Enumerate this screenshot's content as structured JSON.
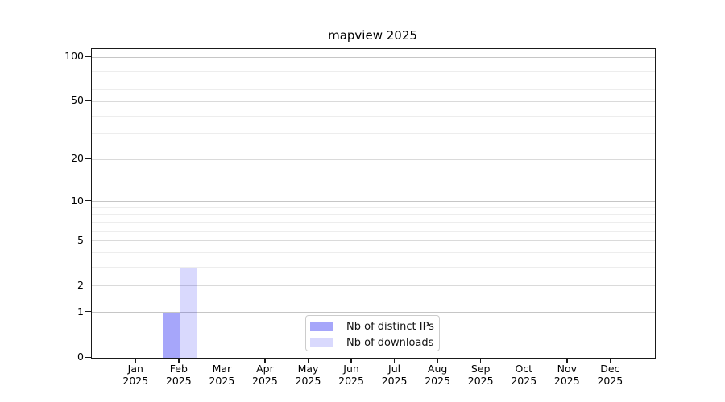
{
  "chart_data": {
    "type": "bar",
    "title": "mapview 2025",
    "x_axis": {
      "categories": [
        "Jan",
        "Feb",
        "Mar",
        "Apr",
        "May",
        "Jun",
        "Jul",
        "Aug",
        "Sep",
        "Oct",
        "Nov",
        "Dec"
      ],
      "year_label": "2025"
    },
    "y_axis": {
      "scale": "log1p",
      "min": 0,
      "max": 100,
      "labeled_ticks": [
        0,
        1,
        2,
        5,
        10,
        20,
        50,
        100
      ],
      "decade_gridlines": [
        1,
        10,
        100
      ],
      "mid_gridlines": [
        2,
        5,
        20,
        50
      ],
      "minor_gridlines": [
        3,
        4,
        6,
        7,
        8,
        9,
        30,
        40,
        60,
        70,
        80,
        90
      ]
    },
    "series": [
      {
        "name": "Nb of distinct IPs",
        "color_key": "distinct_ips",
        "values": [
          0,
          1,
          0,
          0,
          0,
          0,
          0,
          0,
          0,
          0,
          0,
          0
        ]
      },
      {
        "name": "Nb of downloads",
        "color_key": "downloads",
        "values": [
          0,
          3,
          0,
          0,
          0,
          0,
          0,
          0,
          0,
          0,
          0,
          0
        ]
      }
    ],
    "legend": {
      "position": "lower center",
      "border": true
    },
    "grid": true
  },
  "colors": {
    "distinct_ips": "rgba(0,0,240,0.35)",
    "downloads": "rgba(0,0,240,0.15)",
    "grid_decade": "#c6c6c6",
    "grid_mid": "#dadada",
    "grid_minor": "#ededed",
    "frame": "#1a1a1a",
    "text": "#000000"
  }
}
